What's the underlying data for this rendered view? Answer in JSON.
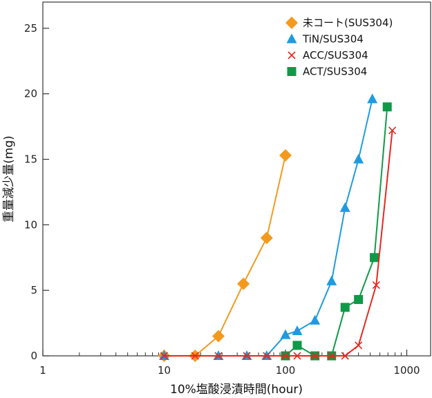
{
  "chart_data": {
    "type": "line",
    "xlabel": "10%塩酸浸漬時間(hour)",
    "ylabel": "重量減少量(mg)",
    "xscale": "log",
    "xlim": [
      1,
      1500
    ],
    "ylim": [
      0,
      27
    ],
    "x_ticks": [
      1,
      10,
      100,
      1000
    ],
    "x_tick_labels": [
      "1",
      "10",
      "100",
      "1000"
    ],
    "y_ticks": [
      0,
      5,
      10,
      15,
      20,
      25
    ],
    "y_tick_labels": [
      "0",
      "5",
      "10",
      "15",
      "20",
      "25"
    ],
    "grid": false,
    "legend_position": "top-right",
    "series": [
      {
        "name": "未コート(SUS304)",
        "color": "#F39A1E",
        "marker": "diamond",
        "x": [
          10,
          18,
          28,
          45,
          70,
          100
        ],
        "y": [
          0,
          0,
          1.5,
          5.5,
          9.0,
          15.3
        ]
      },
      {
        "name": "TiN/SUS304",
        "color": "#1E9BE0",
        "marker": "triangle",
        "x": [
          10,
          28,
          48,
          70,
          100,
          125,
          175,
          240,
          310,
          400,
          520
        ],
        "y": [
          0,
          0,
          0,
          0,
          1.6,
          1.9,
          2.7,
          5.7,
          11.3,
          15.0,
          19.6
        ]
      },
      {
        "name": "ACC/SUS304",
        "color": "#E8261E",
        "marker": "x",
        "x": [
          10,
          18,
          28,
          48,
          70,
          100,
          125,
          175,
          240,
          310,
          400,
          560,
          760
        ],
        "y": [
          0,
          0,
          0,
          0,
          0,
          0,
          0,
          0,
          0,
          0,
          0.8,
          5.4,
          17.2
        ]
      },
      {
        "name": "ACT/SUS304",
        "color": "#0E9A48",
        "marker": "square",
        "x": [
          100,
          125,
          175,
          240,
          310,
          400,
          540,
          690
        ],
        "y": [
          0,
          0.8,
          0,
          0,
          3.7,
          4.3,
          7.5,
          19.0
        ]
      }
    ]
  }
}
